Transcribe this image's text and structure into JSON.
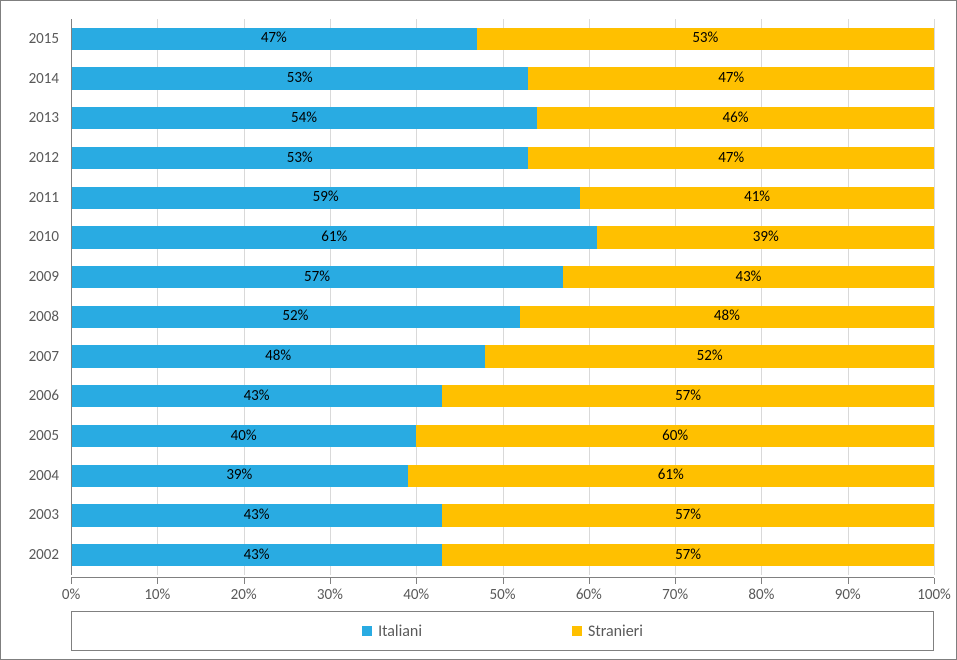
{
  "chart": {
    "type": "stacked-bar-horizontal-100pct",
    "background_color": "#ffffff",
    "border_color": "#7f7f7f",
    "grid_color": "#d9d9d9",
    "axis_line_color": "#808080",
    "tick_label_color": "#595959",
    "tick_label_fontsize": 15,
    "data_label_color": "#000000",
    "data_label_fontsize": 15,
    "series": [
      {
        "name": "Italiani",
        "color": "#29abe2"
      },
      {
        "name": "Stranieri",
        "color": "#ffc000"
      }
    ],
    "categories": [
      "2015",
      "2014",
      "2013",
      "2012",
      "2011",
      "2010",
      "2009",
      "2008",
      "2007",
      "2006",
      "2005",
      "2004",
      "2003",
      "2002"
    ],
    "rows": [
      {
        "label": "2015",
        "values": [
          47,
          53
        ]
      },
      {
        "label": "2014",
        "values": [
          53,
          47
        ]
      },
      {
        "label": "2013",
        "values": [
          54,
          46
        ]
      },
      {
        "label": "2012",
        "values": [
          53,
          47
        ]
      },
      {
        "label": "2011",
        "values": [
          59,
          41
        ]
      },
      {
        "label": "2010",
        "values": [
          61,
          39
        ]
      },
      {
        "label": "2009",
        "values": [
          57,
          43
        ]
      },
      {
        "label": "2008",
        "values": [
          52,
          48
        ]
      },
      {
        "label": "2007",
        "values": [
          48,
          52
        ]
      },
      {
        "label": "2006",
        "values": [
          43,
          57
        ]
      },
      {
        "label": "2005",
        "values": [
          40,
          60
        ]
      },
      {
        "label": "2004",
        "values": [
          39,
          61
        ]
      },
      {
        "label": "2003",
        "values": [
          43,
          57
        ]
      },
      {
        "label": "2002",
        "values": [
          43,
          57
        ]
      }
    ],
    "x_axis": {
      "min": 0,
      "max": 100,
      "tick_step": 10,
      "tick_suffix": "%"
    },
    "bar_gap_ratio": 0.44,
    "legend": {
      "position": "bottom",
      "border_color": "#808080",
      "fontsize": 16
    }
  }
}
